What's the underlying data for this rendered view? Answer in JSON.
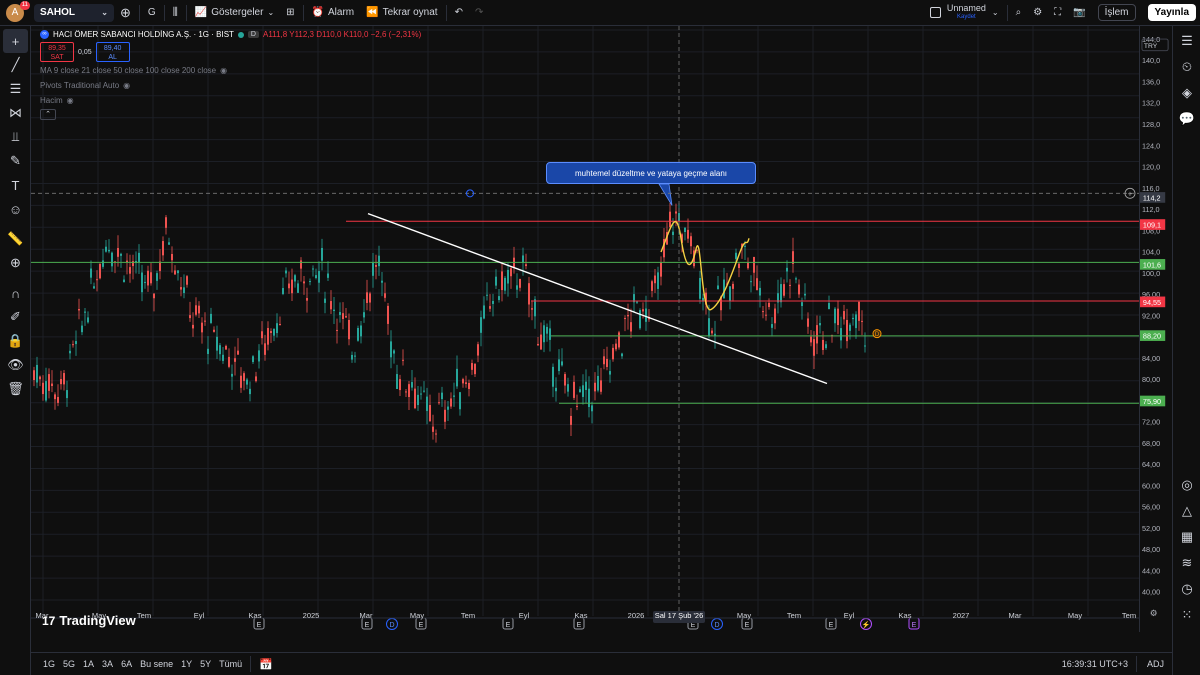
{
  "topbar": {
    "avatar_letter": "A",
    "avatar_badge": "11",
    "symbol": "SAHOL",
    "interval": "G",
    "indicators_label": "Göstergeler",
    "alert_label": "Alarm",
    "replay_label": "Tekrar oynat",
    "layout_name": "Unnamed",
    "layout_status": "Kaydet",
    "trade_label": "İşlem",
    "publish_label": "Yayınla"
  },
  "legend": {
    "title": "HACI ÖMER SABANCI HOLDİNG A.Ş. · 1G · BIST",
    "flag": "D",
    "ohlc": "A111,8  Y112,3  D110,0  K110,0  −2,6 (−2,31%)",
    "sell_price": "89,35",
    "sell_label": "SAT",
    "spread": "0,05",
    "buy_price": "89,40",
    "buy_label": "AL",
    "ma_line": "MA 9 close 21 close 50 close 100 close 200 close",
    "pivots_line": "Pivots Traditional Auto",
    "volume_line": "Hacim"
  },
  "currency": "TRY",
  "annotation_text": "muhtemel düzeltme ve yataya geçme alanı",
  "price_axis": {
    "ticks": [
      "144,0",
      "140,0",
      "136,0",
      "132,0",
      "128,0",
      "124,0",
      "120,0",
      "116,0",
      "112,0",
      "108,0",
      "104,0",
      "100,0",
      "96,00",
      "92,00",
      "88,00",
      "84,00",
      "80,00",
      "76,00",
      "72,00",
      "68,00",
      "64,00",
      "60,00",
      "56,00",
      "52,00",
      "48,00",
      "44,00",
      "40,00"
    ],
    "tick_values": [
      144,
      140,
      136,
      132,
      128,
      124,
      120,
      116,
      112,
      108,
      104,
      100,
      96,
      92,
      88,
      84,
      80,
      76,
      72,
      68,
      64,
      60,
      56,
      52,
      48,
      44,
      40
    ],
    "crosshair_label": "114,2",
    "crosshair_value": 114.2
  },
  "levels": [
    {
      "label": "109,1",
      "value": 109.1,
      "color": "#f23645"
    },
    {
      "label": "101,6",
      "value": 101.6,
      "color": "#4caf50"
    },
    {
      "label": "94,55",
      "value": 94.55,
      "color": "#f23645"
    },
    {
      "label": "88,20",
      "value": 88.2,
      "color": "#4caf50"
    },
    {
      "label": "75,90",
      "value": 75.9,
      "color": "#4caf50"
    }
  ],
  "time_axis": {
    "labels": [
      "Mar",
      "May",
      "Tem",
      "Eyl",
      "Kas",
      "2025",
      "Mar",
      "May",
      "Tem",
      "Eyl",
      "Kas",
      "2026",
      "Sal 17 Şub '26",
      "May",
      "Tem",
      "Eyl",
      "Kas",
      "2027",
      "Mar",
      "May",
      "Tem"
    ]
  },
  "events": [
    "E",
    "E",
    "D",
    "E",
    "E",
    "E",
    "E",
    "D",
    "E",
    "E",
    "E"
  ],
  "branding": "TradingView",
  "bottombar": {
    "timeframes": [
      "1G",
      "5G",
      "1A",
      "3A",
      "6A",
      "Bu sene",
      "1Y",
      "5Y",
      "Tümü"
    ],
    "clock": "16:39:31 UTC+3",
    "adj": "ADJ"
  },
  "colors": {
    "up": "#26a69a",
    "down": "#ef5350",
    "accent": "#2962ff",
    "trendline": "#ffffff",
    "yellow": "#f5d142"
  }
}
